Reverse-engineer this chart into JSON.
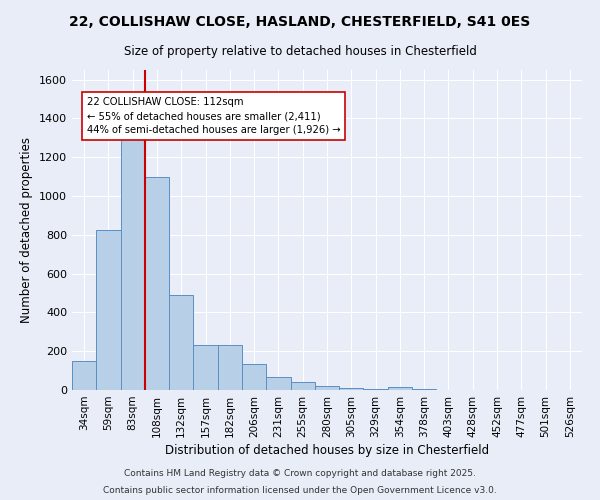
{
  "title_line1": "22, COLLISHAW CLOSE, HASLAND, CHESTERFIELD, S41 0ES",
  "title_line2": "Size of property relative to detached houses in Chesterfield",
  "xlabel": "Distribution of detached houses by size in Chesterfield",
  "ylabel": "Number of detached properties",
  "categories": [
    "34sqm",
    "59sqm",
    "83sqm",
    "108sqm",
    "132sqm",
    "157sqm",
    "182sqm",
    "206sqm",
    "231sqm",
    "255sqm",
    "280sqm",
    "305sqm",
    "329sqm",
    "354sqm",
    "378sqm",
    "403sqm",
    "428sqm",
    "452sqm",
    "477sqm",
    "501sqm",
    "526sqm"
  ],
  "values": [
    150,
    825,
    1300,
    1100,
    490,
    232,
    232,
    135,
    68,
    40,
    22,
    12,
    7,
    15,
    4,
    2,
    2,
    1,
    1,
    0,
    0
  ],
  "bar_color": "#b8cfe8",
  "bar_edge_color": "#5b8ec4",
  "bg_color": "#e8edf8",
  "grid_color": "#ffffff",
  "vline_color": "#cc0000",
  "annotation_text": "22 COLLISHAW CLOSE: 112sqm\n← 55% of detached houses are smaller (2,411)\n44% of semi-detached houses are larger (1,926) →",
  "annotation_box_color": "#ffffff",
  "annotation_box_edge_color": "#cc0000",
  "footnote1": "Contains HM Land Registry data © Crown copyright and database right 2025.",
  "footnote2": "Contains public sector information licensed under the Open Government Licence v3.0.",
  "ylim": [
    0,
    1650
  ],
  "yticks": [
    0,
    200,
    400,
    600,
    800,
    1000,
    1200,
    1400,
    1600
  ]
}
